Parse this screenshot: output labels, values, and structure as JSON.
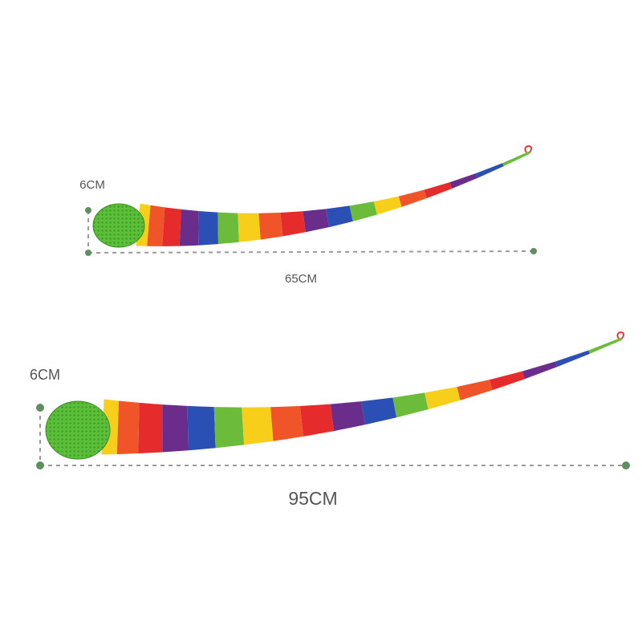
{
  "items": [
    {
      "height": "6CM",
      "length": "65CM"
    },
    {
      "height": "6CM",
      "length": "95CM"
    }
  ]
}
